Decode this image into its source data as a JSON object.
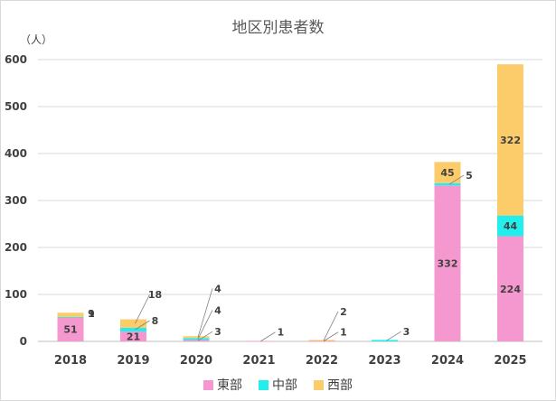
{
  "chart_data": {
    "type": "bar",
    "stacked": true,
    "title": "地区別患者数",
    "unit_label": "（人）",
    "categories": [
      "2018",
      "2019",
      "2020",
      "2021",
      "2022",
      "2023",
      "2024",
      "2025"
    ],
    "yticks": [
      "0",
      "100",
      "200",
      "300",
      "400",
      "500",
      "600"
    ],
    "ylim": [
      0,
      600
    ],
    "grid": true,
    "legend_position": "bottom",
    "series": [
      {
        "name": "東部",
        "color": "#f598cf",
        "values": [
          51,
          21,
          3,
          1,
          1,
          0,
          332,
          224
        ]
      },
      {
        "name": "中部",
        "color": "#22eeee",
        "values": [
          1,
          8,
          4,
          0,
          0,
          3,
          5,
          44
        ]
      },
      {
        "name": "西部",
        "color": "#fccb6a",
        "values": [
          9,
          18,
          4,
          0,
          2,
          0,
          45,
          322
        ]
      }
    ]
  }
}
